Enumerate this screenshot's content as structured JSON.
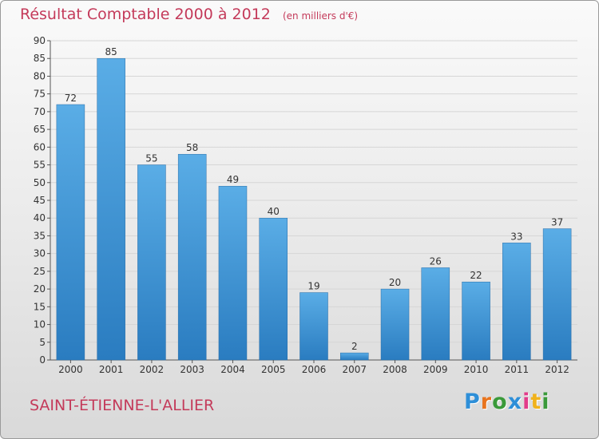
{
  "chart_data": {
    "type": "bar",
    "title": "Résultat Comptable 2000 à 2012",
    "unit_note": "(en milliers d'€)",
    "categories": [
      "2000",
      "2001",
      "2002",
      "2003",
      "2004",
      "2005",
      "2006",
      "2007",
      "2008",
      "2009",
      "2010",
      "2011",
      "2012"
    ],
    "values": [
      72,
      85,
      55,
      58,
      49,
      40,
      19,
      2,
      20,
      26,
      22,
      33,
      37
    ],
    "ylim": [
      0,
      90
    ],
    "yticks": [
      0,
      5,
      10,
      15,
      20,
      25,
      30,
      35,
      40,
      45,
      50,
      55,
      60,
      65,
      70,
      75,
      80,
      85,
      90
    ],
    "xlabel": "",
    "ylabel": "",
    "bar_color_top": "#5aade6",
    "bar_color_bottom": "#2a7cc0",
    "title_color": "#c43a5a"
  },
  "footer": {
    "commune": "SAINT-ÉTIENNE-L'ALLIER",
    "logo_text": "Proxiti",
    "logo_colors": [
      "#2e8fd8",
      "#e8741e",
      "#3a9a3a",
      "#2e8fd8",
      "#e23b8a",
      "#f0b21c",
      "#3a9a3a"
    ]
  }
}
